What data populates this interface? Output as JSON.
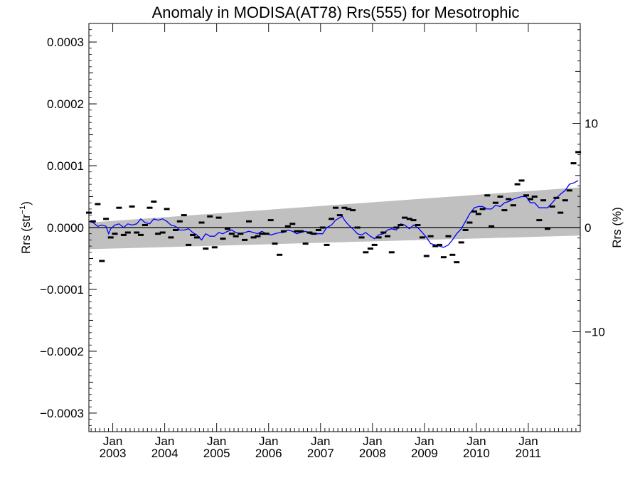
{
  "chart_data": {
    "type": "scatter",
    "title": "Anomaly in MODISA(AT78) Rrs(555) for Mesotrophic",
    "ylabel": "Rrs (str",
    "ylabel_sup": "−1",
    "ylabel_close": ")",
    "y2label": "Rrs (%)",
    "ylim": [
      -0.00033,
      0.00033
    ],
    "y2lim": [
      -19.6,
      19.6
    ],
    "xlim": [
      2002.54,
      2012.0
    ],
    "grid": false,
    "yticks": [
      {
        "value": 0.0003,
        "label": "0.0003"
      },
      {
        "value": 0.0002,
        "label": "0.0002"
      },
      {
        "value": 0.0001,
        "label": "0.0001"
      },
      {
        "value": 0.0,
        "label": "0.0000"
      },
      {
        "value": -0.0001,
        "label": "−0.0001"
      },
      {
        "value": -0.0002,
        "label": "−0.0002"
      },
      {
        "value": -0.0003,
        "label": "−0.0003"
      }
    ],
    "y2ticks": [
      {
        "value": 10,
        "label": "10"
      },
      {
        "value": 0,
        "label": "0"
      },
      {
        "value": -10,
        "label": "−10"
      }
    ],
    "xticks": [
      {
        "value": 2003.0,
        "line1": "Jan",
        "line2": "2003"
      },
      {
        "value": 2004.0,
        "line1": "Jan",
        "line2": "2004"
      },
      {
        "value": 2005.0,
        "line1": "Jan",
        "line2": "2005"
      },
      {
        "value": 2006.0,
        "line1": "Jan",
        "line2": "2006"
      },
      {
        "value": 2007.0,
        "line1": "Jan",
        "line2": "2007"
      },
      {
        "value": 2008.0,
        "line1": "Jan",
        "line2": "2008"
      },
      {
        "value": 2009.0,
        "line1": "Jan",
        "line2": "2009"
      },
      {
        "value": 2010.0,
        "line1": "Jan",
        "line2": "2010"
      },
      {
        "value": 2011.0,
        "line1": "Jan",
        "line2": "2011"
      }
    ],
    "band": {
      "color": "#c0c0c0",
      "x": [
        2002.54,
        2012.0
      ],
      "upper": [
        8e-06,
        6.5e-05
      ],
      "lower": [
        -3.5e-05,
        -1.3e-05
      ]
    },
    "zero_line": {
      "y": 0.0,
      "color": "#000000"
    },
    "series": [
      {
        "kind": "markers",
        "color": "#000000",
        "points": [
          [
            2002.54,
            2.4e-05
          ],
          [
            2002.62,
            1e-05
          ],
          [
            2002.71,
            3.8e-05
          ],
          [
            2002.79,
            -5.4e-05
          ],
          [
            2002.87,
            1.4e-05
          ],
          [
            2002.96,
            -1.6e-05
          ],
          [
            2003.04,
            -1e-05
          ],
          [
            2003.12,
            3.2e-05
          ],
          [
            2003.21,
            -1.2e-05
          ],
          [
            2003.29,
            -8e-06
          ],
          [
            2003.37,
            3.4e-05
          ],
          [
            2003.46,
            -8e-06
          ],
          [
            2003.54,
            -1.2e-05
          ],
          [
            2003.62,
            4e-06
          ],
          [
            2003.71,
            3.2e-05
          ],
          [
            2003.79,
            4.2e-05
          ],
          [
            2003.87,
            -1e-05
          ],
          [
            2003.96,
            -8e-06
          ],
          [
            2004.04,
            3e-05
          ],
          [
            2004.12,
            -1.6e-05
          ],
          [
            2004.21,
            -4e-06
          ],
          [
            2004.29,
            1e-05
          ],
          [
            2004.37,
            2e-05
          ],
          [
            2004.46,
            -2.8e-05
          ],
          [
            2004.54,
            -1.2e-05
          ],
          [
            2004.62,
            -1.6e-05
          ],
          [
            2004.71,
            8e-06
          ],
          [
            2004.79,
            -3.4e-05
          ],
          [
            2004.87,
            1.8e-05
          ],
          [
            2004.96,
            -3.2e-05
          ],
          [
            2005.04,
            1.6e-05
          ],
          [
            2005.12,
            -1.8e-05
          ],
          [
            2005.21,
            -2e-06
          ],
          [
            2005.29,
            -1e-05
          ],
          [
            2005.37,
            -1.4e-05
          ],
          [
            2005.46,
            -1e-05
          ],
          [
            2005.54,
            -2e-05
          ],
          [
            2005.62,
            1e-05
          ],
          [
            2005.71,
            -1.6e-05
          ],
          [
            2005.79,
            -1.4e-05
          ],
          [
            2005.87,
            -1e-05
          ],
          [
            2005.96,
            -1e-05
          ],
          [
            2006.04,
            1.2e-05
          ],
          [
            2006.12,
            -2.6e-05
          ],
          [
            2006.21,
            -4.4e-05
          ],
          [
            2006.29,
            -6e-06
          ],
          [
            2006.37,
            2e-06
          ],
          [
            2006.46,
            6e-06
          ],
          [
            2006.54,
            -6e-06
          ],
          [
            2006.62,
            -6e-06
          ],
          [
            2006.71,
            -2.6e-05
          ],
          [
            2006.79,
            -8e-06
          ],
          [
            2006.87,
            -1e-05
          ],
          [
            2006.96,
            -4e-06
          ],
          [
            2007.04,
            0.0
          ],
          [
            2007.12,
            -2.8e-05
          ],
          [
            2007.21,
            1.4e-05
          ],
          [
            2007.29,
            3.2e-05
          ],
          [
            2007.37,
            2e-05
          ],
          [
            2007.46,
            3.2e-05
          ],
          [
            2007.54,
            3e-05
          ],
          [
            2007.62,
            2.8e-05
          ],
          [
            2007.71,
            0.0
          ],
          [
            2007.79,
            -1.6e-05
          ],
          [
            2007.87,
            -4e-05
          ],
          [
            2007.96,
            -3.4e-05
          ],
          [
            2008.04,
            -2.8e-05
          ],
          [
            2008.12,
            -1.6e-05
          ],
          [
            2008.21,
            -8e-06
          ],
          [
            2008.29,
            -1.4e-05
          ],
          [
            2008.37,
            -4e-05
          ],
          [
            2008.46,
            0.0
          ],
          [
            2008.54,
            4e-06
          ],
          [
            2008.62,
            1.6e-05
          ],
          [
            2008.71,
            1.4e-05
          ],
          [
            2008.79,
            1.2e-05
          ],
          [
            2008.87,
            4e-06
          ],
          [
            2008.96,
            -1.6e-05
          ],
          [
            2009.04,
            -4.6e-05
          ],
          [
            2009.12,
            -1.4e-05
          ],
          [
            2009.21,
            -3e-05
          ],
          [
            2009.29,
            -2.8e-05
          ],
          [
            2009.37,
            -4.8e-05
          ],
          [
            2009.46,
            -1.4e-05
          ],
          [
            2009.54,
            -4.4e-05
          ],
          [
            2009.62,
            -5.6e-05
          ],
          [
            2009.71,
            -2.4e-05
          ],
          [
            2009.79,
            -4e-06
          ],
          [
            2009.87,
            8e-06
          ],
          [
            2009.96,
            2.6e-05
          ],
          [
            2010.04,
            2.2e-05
          ],
          [
            2010.12,
            3e-05
          ],
          [
            2010.21,
            5.2e-05
          ],
          [
            2010.29,
            2e-06
          ],
          [
            2010.37,
            4e-05
          ],
          [
            2010.46,
            5e-05
          ],
          [
            2010.54,
            2.8e-05
          ],
          [
            2010.62,
            4.6e-05
          ],
          [
            2010.71,
            3.6e-05
          ],
          [
            2010.79,
            7e-05
          ],
          [
            2010.87,
            7.6e-05
          ],
          [
            2010.96,
            5.2e-05
          ],
          [
            2011.04,
            4.6e-05
          ],
          [
            2011.12,
            5e-05
          ],
          [
            2011.21,
            1.2e-05
          ],
          [
            2011.29,
            4.4e-05
          ],
          [
            2011.37,
            -2e-06
          ],
          [
            2011.46,
            3.4e-05
          ],
          [
            2011.54,
            4.8e-05
          ],
          [
            2011.62,
            2.4e-05
          ],
          [
            2011.71,
            4.4e-05
          ],
          [
            2011.79,
            6e-05
          ],
          [
            2011.87,
            0.000104
          ],
          [
            2011.96,
            0.000122
          ]
        ]
      },
      {
        "kind": "line",
        "color": "#0000ff",
        "points": [
          [
            2002.54,
            1e-05
          ],
          [
            2002.62,
            8e-06
          ],
          [
            2002.71,
            2e-06
          ],
          [
            2002.79,
            4e-06
          ],
          [
            2002.87,
            2e-06
          ],
          [
            2002.92,
            -1e-05
          ],
          [
            2002.96,
            -2e-06
          ],
          [
            2003.04,
            4e-06
          ],
          [
            2003.12,
            6e-06
          ],
          [
            2003.21,
            0.0
          ],
          [
            2003.29,
            6e-06
          ],
          [
            2003.37,
            4e-06
          ],
          [
            2003.46,
            6e-06
          ],
          [
            2003.54,
            1.4e-05
          ],
          [
            2003.62,
            8e-06
          ],
          [
            2003.71,
            6e-06
          ],
          [
            2003.79,
            1.4e-05
          ],
          [
            2003.87,
            1.2e-05
          ],
          [
            2003.96,
            1.4e-05
          ],
          [
            2004.04,
            1e-05
          ],
          [
            2004.12,
            4e-06
          ],
          [
            2004.21,
            2e-06
          ],
          [
            2004.29,
            -4e-06
          ],
          [
            2004.37,
            -4e-06
          ],
          [
            2004.46,
            -2e-06
          ],
          [
            2004.54,
            -8e-06
          ],
          [
            2004.62,
            -1.2e-05
          ],
          [
            2004.71,
            -2e-05
          ],
          [
            2004.79,
            -1e-05
          ],
          [
            2004.87,
            -1.4e-05
          ],
          [
            2004.96,
            -1.4e-05
          ],
          [
            2005.04,
            -8e-06
          ],
          [
            2005.12,
            -1e-05
          ],
          [
            2005.21,
            -6e-06
          ],
          [
            2005.29,
            -4e-06
          ],
          [
            2005.37,
            -8e-06
          ],
          [
            2005.46,
            -1e-05
          ],
          [
            2005.54,
            -8e-06
          ],
          [
            2005.62,
            -6e-06
          ],
          [
            2005.71,
            -8e-06
          ],
          [
            2005.79,
            -1e-05
          ],
          [
            2005.87,
            -6e-06
          ],
          [
            2005.96,
            -1e-05
          ],
          [
            2006.04,
            -1.2e-05
          ],
          [
            2006.12,
            -1e-05
          ],
          [
            2006.21,
            -8e-06
          ],
          [
            2006.29,
            -8e-06
          ],
          [
            2006.37,
            -4e-06
          ],
          [
            2006.46,
            -6e-06
          ],
          [
            2006.54,
            -1e-05
          ],
          [
            2006.62,
            -8e-06
          ],
          [
            2006.71,
            -6e-06
          ],
          [
            2006.79,
            -1e-05
          ],
          [
            2006.87,
            -1e-05
          ],
          [
            2006.96,
            -1e-05
          ],
          [
            2007.04,
            -1e-05
          ],
          [
            2007.12,
            0.0
          ],
          [
            2007.21,
            4e-06
          ],
          [
            2007.29,
            1.2e-05
          ],
          [
            2007.37,
            1.6e-05
          ],
          [
            2007.42,
            1.8e-05
          ],
          [
            2007.46,
            1.2e-05
          ],
          [
            2007.54,
            4e-06
          ],
          [
            2007.62,
            -2e-06
          ],
          [
            2007.71,
            -1e-05
          ],
          [
            2007.79,
            -1.2e-05
          ],
          [
            2007.87,
            -8e-06
          ],
          [
            2007.96,
            -1.4e-05
          ],
          [
            2008.04,
            -1.8e-05
          ],
          [
            2008.12,
            -1.2e-05
          ],
          [
            2008.21,
            -1e-05
          ],
          [
            2008.29,
            -4e-06
          ],
          [
            2008.37,
            -2e-06
          ],
          [
            2008.46,
            -4e-06
          ],
          [
            2008.54,
            6e-06
          ],
          [
            2008.62,
            4e-06
          ],
          [
            2008.71,
            -2e-06
          ],
          [
            2008.79,
            4e-06
          ],
          [
            2008.87,
            0.0
          ],
          [
            2008.96,
            -8e-06
          ],
          [
            2009.04,
            -1.6e-05
          ],
          [
            2009.12,
            -2.6e-05
          ],
          [
            2009.21,
            -2.8e-05
          ],
          [
            2009.29,
            -3e-05
          ],
          [
            2009.37,
            -3.2e-05
          ],
          [
            2009.46,
            -2.8e-05
          ],
          [
            2009.54,
            -2e-05
          ],
          [
            2009.62,
            -1e-05
          ],
          [
            2009.71,
            -2e-06
          ],
          [
            2009.79,
            1e-05
          ],
          [
            2009.87,
            2.2e-05
          ],
          [
            2009.96,
            3.2e-05
          ],
          [
            2010.04,
            3.4e-05
          ],
          [
            2010.12,
            3.4e-05
          ],
          [
            2010.21,
            3e-05
          ],
          [
            2010.29,
            3e-05
          ],
          [
            2010.37,
            3.6e-05
          ],
          [
            2010.46,
            3.4e-05
          ],
          [
            2010.54,
            4e-05
          ],
          [
            2010.62,
            4.2e-05
          ],
          [
            2010.71,
            4.6e-05
          ],
          [
            2010.79,
            4.8e-05
          ],
          [
            2010.87,
            5e-05
          ],
          [
            2010.96,
            5e-05
          ],
          [
            2011.04,
            4e-05
          ],
          [
            2011.12,
            4e-05
          ],
          [
            2011.21,
            3.2e-05
          ],
          [
            2011.29,
            3.2e-05
          ],
          [
            2011.37,
            3.2e-05
          ],
          [
            2011.46,
            4e-05
          ],
          [
            2011.54,
            4.8e-05
          ],
          [
            2011.62,
            5.4e-05
          ],
          [
            2011.71,
            6e-05
          ],
          [
            2011.79,
            7e-05
          ],
          [
            2011.87,
            7.2e-05
          ],
          [
            2011.96,
            7.6e-05
          ]
        ]
      }
    ]
  }
}
